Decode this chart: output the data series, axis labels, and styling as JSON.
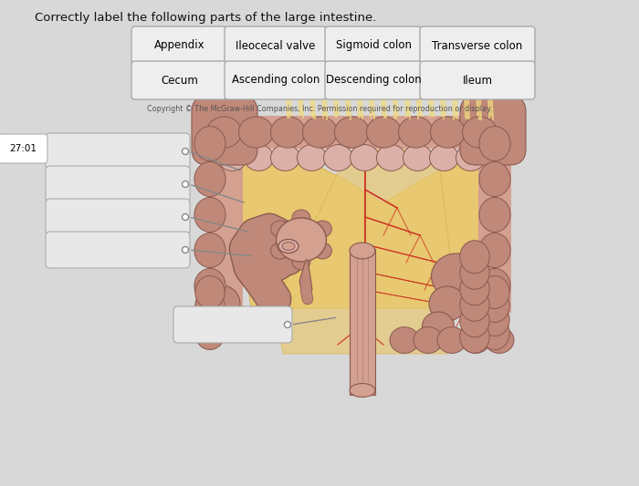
{
  "title": "Correctly label the following parts of the large intestine.",
  "title_fontsize": 9.5,
  "bg_color": "#d8d8d8",
  "copyright": "Copyright © The McGraw-Hill Companies, Inc. Permission required for reproduction or display.",
  "copyright_fontsize": 6.0,
  "timer_text": "27:01",
  "label_boxes_row1": [
    "Appendix",
    "Ileocecal valve",
    "Sigmoid colon",
    "Transverse colon"
  ],
  "label_boxes_row2": [
    "Cecum",
    "Ascending colon",
    "Descending colon",
    "Ileum"
  ],
  "box_facecolor": "#eeeeee",
  "box_edgecolor": "#aaaaaa",
  "intestine_main": "#c08878",
  "intestine_dark": "#8a5a50",
  "intestine_light": "#d4a090",
  "intestine_highlight": "#dbb0a8",
  "omentum_yellow": "#d4a840",
  "omentum_light": "#e8c870",
  "omentum_fringe": "#f0d880",
  "blood_vessel": "#cc3322",
  "sigmoid_color": "#c09090",
  "answer_box_facecolor": "#e8e8e8",
  "answer_box_edgecolor": "#aaaaaa",
  "line_color": "#888888",
  "dot_color": "#999999"
}
